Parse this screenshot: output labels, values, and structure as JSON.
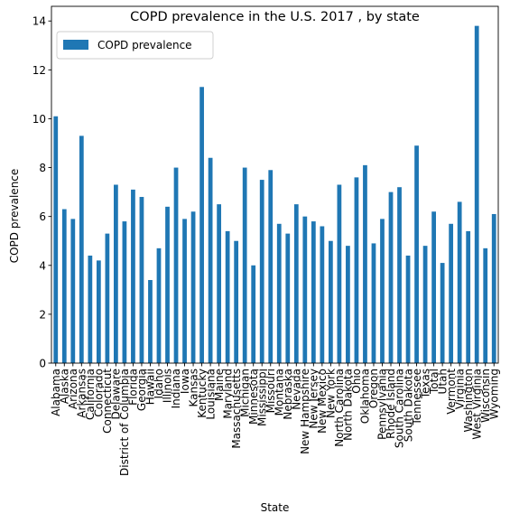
{
  "chart_data": {
    "type": "bar",
    "title": "COPD prevalence in the U.S. 2017 , by state",
    "xlabel": "State",
    "ylabel": "COPD prevalence",
    "ylim": [
      0,
      14.6
    ],
    "yticks": [
      0,
      2,
      4,
      6,
      8,
      10,
      12,
      14
    ],
    "legend_position": "top-left",
    "bar_color": "#1f77b4",
    "series": [
      {
        "name": "COPD prevalence",
        "values": [
          10.1,
          6.3,
          5.9,
          9.3,
          4.4,
          4.2,
          5.3,
          7.3,
          5.8,
          7.1,
          6.8,
          3.4,
          4.7,
          6.4,
          8.0,
          5.9,
          6.2,
          11.3,
          8.4,
          6.5,
          5.4,
          5.0,
          8.0,
          4.0,
          7.5,
          7.9,
          5.7,
          5.3,
          6.5,
          6.0,
          5.8,
          5.6,
          5.0,
          7.3,
          4.8,
          7.6,
          8.1,
          4.9,
          5.9,
          7.0,
          7.2,
          4.4,
          8.9,
          4.8,
          6.2,
          4.1,
          5.7,
          6.6,
          5.4,
          13.8,
          4.7,
          6.1
        ]
      }
    ],
    "categories": [
      "Alabama",
      "Alaska",
      "Arizona",
      "Arkansas",
      "California",
      "Colorado",
      "Connecticut",
      "Delaware",
      "District of Columbia",
      "Florida",
      "Georgia",
      "Hawaii",
      "Idaho",
      "Illinois",
      "Indiana",
      "Iowa",
      "Kansas",
      "Kentucky",
      "Louisiana",
      "Maine",
      "Maryland",
      "Massachusetts",
      "Michigan",
      "Minnesota",
      "Mississippi",
      "Missouri",
      "Montana",
      "Nebraska",
      "Nevada",
      "New Hampshire",
      "New Jersey",
      "New Mexico",
      "New York",
      "North Carolina",
      "North Dakota",
      "Ohio",
      "Oklahoma",
      "Oregon",
      "Pennsylvania",
      "Rhode Island",
      "South Carolina",
      "South Dakota",
      "Tennessee",
      "Texas",
      "Total",
      "Utah",
      "Vermont",
      "Virginia",
      "Washington",
      "West Virginia",
      "Wisconsin",
      "Wyoming"
    ]
  }
}
